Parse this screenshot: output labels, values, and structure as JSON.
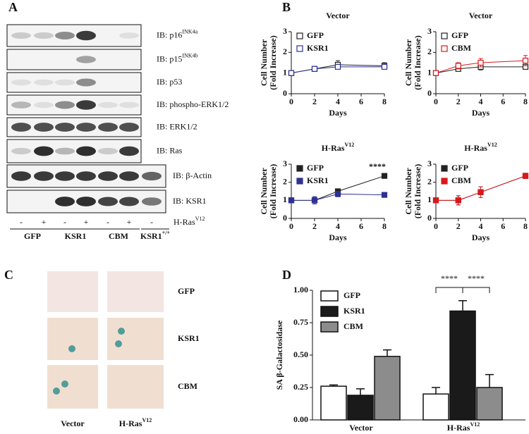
{
  "panel_labels": [
    "A",
    "B",
    "C",
    "D"
  ],
  "panel_a": {
    "blots": [
      {
        "text": "IB: p16",
        "sup": "INK4a"
      },
      {
        "text": "IB: p15",
        "sup": "INK4b"
      },
      {
        "text": "IB: p53"
      },
      {
        "text": "IB: phospho-ERK1/2"
      },
      {
        "text": "IB: ERK1/2"
      },
      {
        "text": "IB: Ras"
      },
      {
        "text": "IB: β-Actin"
      },
      {
        "text": "IB: KSR1"
      }
    ],
    "lanes": [
      "-",
      "+",
      "-",
      "+",
      "-",
      "+",
      "-"
    ],
    "ras_label": {
      "text": "H-Ras",
      "sup": "V12"
    },
    "groups": [
      {
        "text": "GFP"
      },
      {
        "text": "KSR1"
      },
      {
        "text": "CBM"
      },
      {
        "text": "KSR1",
        "sup": "+/+"
      }
    ]
  },
  "panel_c": {
    "rows": [
      "GFP",
      "KSR1",
      "CBM"
    ],
    "columns": [
      {
        "text": "Vector"
      },
      {
        "text": "H-Ras",
        "sup": "V12"
      }
    ]
  },
  "chart_data": [
    {
      "type": "line",
      "title": "Vector",
      "x": [
        0,
        2,
        4,
        8
      ],
      "xlim": [
        0,
        8
      ],
      "xticks": [
        0,
        2,
        4,
        6,
        8
      ],
      "ylim": [
        0,
        3
      ],
      "yticks": [
        0,
        1,
        2,
        3
      ],
      "xlabel": "Days",
      "ylabel": [
        "Cell Number",
        "(Fold Increase)"
      ],
      "series": [
        {
          "name": "GFP",
          "color": "#222222",
          "filled": false,
          "values": [
            1,
            1.2,
            1.4,
            1.35
          ],
          "errors": [
            0.05,
            0.1,
            0.2,
            0.15
          ]
        },
        {
          "name": "KSR1",
          "color": "#2e3192",
          "filled": false,
          "values": [
            1,
            1.2,
            1.3,
            1.3
          ],
          "errors": [
            0.05,
            0.08,
            0.1,
            0.1
          ]
        }
      ]
    },
    {
      "type": "line",
      "title": "Vector",
      "x": [
        0,
        2,
        4,
        8
      ],
      "xlim": [
        0,
        8
      ],
      "xticks": [
        0,
        2,
        4,
        6,
        8
      ],
      "ylim": [
        0,
        3
      ],
      "yticks": [
        0,
        1,
        2,
        3
      ],
      "xlabel": "Days",
      "ylabel": [
        "Cell Number",
        "(Fold Increase)"
      ],
      "series": [
        {
          "name": "GFP",
          "color": "#222222",
          "filled": false,
          "values": [
            1,
            1.2,
            1.3,
            1.3
          ],
          "errors": [
            0.05,
            0.08,
            0.15,
            0.1
          ]
        },
        {
          "name": "CBM",
          "color": "#d7191c",
          "filled": false,
          "values": [
            1,
            1.35,
            1.5,
            1.6
          ],
          "errors": [
            0.1,
            0.15,
            0.2,
            0.25
          ]
        }
      ]
    },
    {
      "type": "line",
      "title": "H-Ras",
      "title_sup": "V12",
      "x": [
        0,
        2,
        4,
        8
      ],
      "xlim": [
        0,
        8
      ],
      "xticks": [
        0,
        2,
        4,
        6,
        8
      ],
      "ylim": [
        0,
        3
      ],
      "yticks": [
        0,
        1,
        2,
        3
      ],
      "xlabel": "Days",
      "ylabel": [
        "Cell Number",
        "(Fold Increase)"
      ],
      "annotation": "****",
      "series": [
        {
          "name": "GFP",
          "color": "#222222",
          "filled": true,
          "values": [
            1,
            1,
            1.5,
            2.35
          ],
          "errors": [
            0.05,
            0.2,
            0.1,
            0.05
          ]
        },
        {
          "name": "KSR1",
          "color": "#2e3192",
          "filled": true,
          "values": [
            1,
            1,
            1.35,
            1.3
          ],
          "errors": [
            0.05,
            0.2,
            0.15,
            0.05
          ]
        }
      ]
    },
    {
      "type": "line",
      "title": "H-Ras",
      "title_sup": "V12",
      "x": [
        0,
        2,
        4,
        8
      ],
      "xlim": [
        0,
        8
      ],
      "xticks": [
        0,
        2,
        4,
        6,
        8
      ],
      "ylim": [
        0,
        3
      ],
      "yticks": [
        0,
        1,
        2,
        3
      ],
      "xlabel": "Days",
      "ylabel": [
        "Cell Number",
        "(Fold Increase)"
      ],
      "series": [
        {
          "name": "GFP",
          "color": "#222222",
          "filled": true,
          "values": [
            1,
            1,
            1.45,
            2.35
          ],
          "errors": [
            0.05,
            0.25,
            0.3,
            0.15
          ]
        },
        {
          "name": "CBM",
          "color": "#d7191c",
          "filled": true,
          "values": [
            1,
            1,
            1.45,
            2.35
          ],
          "errors": [
            0.05,
            0.25,
            0.3,
            0.15
          ]
        }
      ]
    },
    {
      "type": "bar",
      "categories": [
        {
          "text": "Vector"
        },
        {
          "text": "H-Ras",
          "sup": "V12"
        }
      ],
      "ylim": [
        0,
        1
      ],
      "yticks": [
        {
          "value": 0,
          "label": "0.00"
        },
        {
          "value": 0.25,
          "label": "0.25"
        },
        {
          "value": 0.5,
          "label": "0.50"
        },
        {
          "value": 0.75,
          "label": "0.75"
        },
        {
          "value": 1,
          "label": "1.00"
        }
      ],
      "ylabel": "SA β-Galactosidase",
      "annotations": [
        "****",
        "****"
      ],
      "series": [
        {
          "name": "GFP",
          "color": "#ffffff",
          "values": [
            0.26,
            0.2
          ],
          "errors": [
            0.01,
            0.05
          ]
        },
        {
          "name": "KSR1",
          "color": "#1a1a1a",
          "values": [
            0.19,
            0.84
          ],
          "errors": [
            0.05,
            0.08
          ]
        },
        {
          "name": "CBM",
          "color": "#8c8c8c",
          "values": [
            0.49,
            0.25
          ],
          "errors": [
            0.05,
            0.1
          ]
        }
      ]
    }
  ]
}
